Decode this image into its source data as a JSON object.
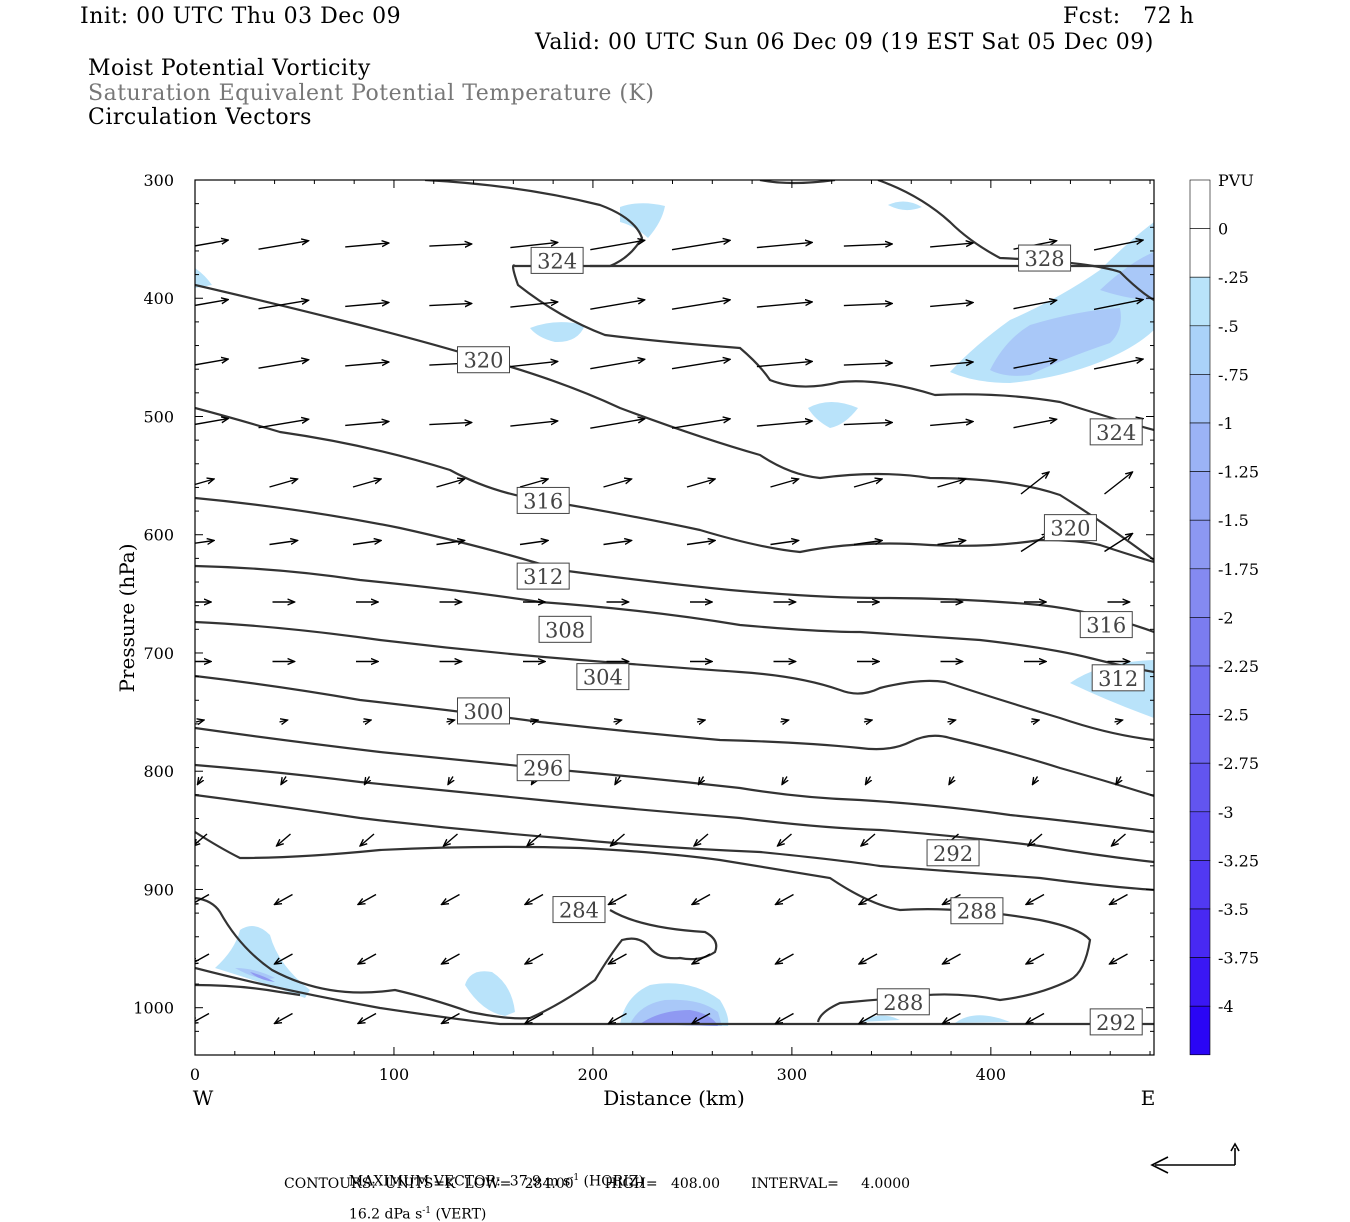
{
  "header": {
    "init": "Init: 00 UTC Thu 03 Dec 09",
    "fcst": "Fcst:   72 h",
    "valid": "Valid: 00 UTC Sun 06 Dec 09 (19 EST Sat 05 Dec 09)",
    "field1": "Moist Potential Vorticity",
    "field2": "Saturation Equivalent Potential Temperature (K)",
    "field3": "Circulation Vectors"
  },
  "footer": {
    "line1_a": "MAXIMUM VECTOR:  37.9 m s",
    "line1_a_sup": "-1",
    "line1_b": " (HORIZ)",
    "line1_c": "16.2 dPa s",
    "line1_c_sup": "-1",
    "line1_d": " (VERT)",
    "line2": "CONTOURS:  UNITS=K  LOW=   284.00       HIGH=   408.00       INTERVAL=     4.0000"
  },
  "colors": {
    "shade_025": "#b9e3fa",
    "shade_05": "#a9c8f8",
    "shade_075": "#9db0f5",
    "shade_1": "#8f99f2",
    "shade_deep": "#3a3af2",
    "contour": "#333333"
  },
  "chart_data": {
    "type": "cross-section",
    "xlabel": "Distance (km)",
    "ylabel": "Pressure (hPa)",
    "xlim": [
      0,
      482
    ],
    "ylim": [
      1040,
      300
    ],
    "x_ticks": [
      "0",
      "100",
      "200",
      "300",
      "400"
    ],
    "x_tick_values": [
      0,
      100,
      200,
      300,
      400
    ],
    "y_ticks": [
      "300",
      "400",
      "500",
      "600",
      "700",
      "800",
      "900",
      "1000"
    ],
    "y_tick_values": [
      300,
      400,
      500,
      600,
      700,
      800,
      900,
      1000
    ],
    "left_end_label": "W",
    "right_end_label": "E",
    "colorbar": {
      "units": "PVU",
      "labels": [
        "0",
        "-.25",
        "-.5",
        "-.75",
        "-1",
        "-1.25",
        "-1.5",
        "-1.75",
        "-2",
        "-2.25",
        "-2.5",
        "-2.75",
        "-3",
        "-3.25",
        "-3.5",
        "-3.75",
        "-4"
      ]
    },
    "contour_labels": [
      {
        "text": "324",
        "x": 182,
        "p": 368
      },
      {
        "text": "328",
        "x": 427,
        "p": 366
      },
      {
        "text": "320",
        "x": 145,
        "p": 452
      },
      {
        "text": "324",
        "x": 463,
        "p": 513
      },
      {
        "text": "316",
        "x": 175,
        "p": 571
      },
      {
        "text": "320",
        "x": 440,
        "p": 594
      },
      {
        "text": "312",
        "x": 175,
        "p": 635
      },
      {
        "text": "316",
        "x": 458,
        "p": 676
      },
      {
        "text": "308",
        "x": 186,
        "p": 680
      },
      {
        "text": "312",
        "x": 464,
        "p": 721
      },
      {
        "text": "304",
        "x": 205,
        "p": 720
      },
      {
        "text": "300",
        "x": 145,
        "p": 749
      },
      {
        "text": "296",
        "x": 175,
        "p": 797
      },
      {
        "text": "292",
        "x": 381,
        "p": 869
      },
      {
        "text": "284",
        "x": 193,
        "p": 917
      },
      {
        "text": "288",
        "x": 393,
        "p": 918
      },
      {
        "text": "288",
        "x": 356,
        "p": 995
      },
      {
        "text": "292",
        "x": 463,
        "p": 1012
      }
    ]
  }
}
